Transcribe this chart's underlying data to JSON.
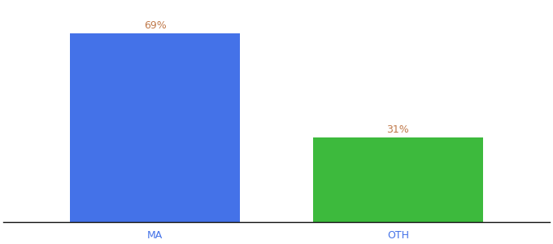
{
  "categories": [
    "MA",
    "OTH"
  ],
  "values": [
    69,
    31
  ],
  "bar_colors": [
    "#4472e8",
    "#3dba3d"
  ],
  "label_color": "#c0794a",
  "label_fontsize": 9,
  "tick_label_color": "#4472e8",
  "tick_fontsize": 9,
  "background_color": "#ffffff",
  "ylim": [
    0,
    80
  ],
  "bar_width": 0.28,
  "x_positions": [
    0.25,
    0.65
  ],
  "xlim": [
    0.0,
    0.9
  ],
  "figsize": [
    6.8,
    3.0
  ],
  "dpi": 100
}
